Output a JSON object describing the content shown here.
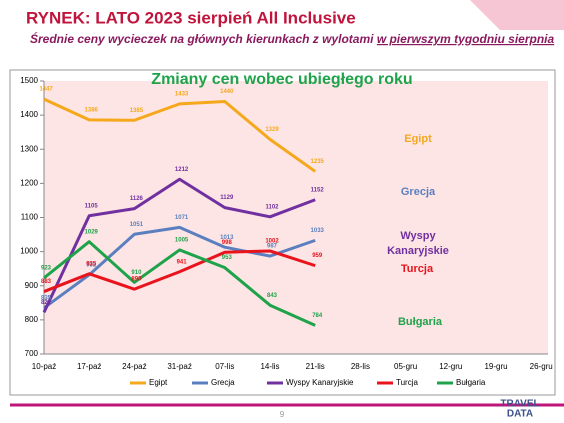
{
  "header": {
    "title": "RYNEK: LATO 2023 sierpień All Inclusive",
    "subtitle": "Średnie ceny wycieczek na głównych kierunkach z wylotami",
    "subtitle_underlined": "w pierwszym tygodniu sierpnia"
  },
  "page_number": "9",
  "logo": {
    "line1": "TRAVEL",
    "line2": "DATA"
  },
  "chart_data": {
    "type": "line",
    "title": "Zmiany cen wobec ubiegłego roku",
    "categories": [
      "10-paź",
      "17-paź",
      "24-paź",
      "31-paź",
      "07-lis",
      "14-lis",
      "21-lis",
      "28-lis",
      "05-gru",
      "12-gru",
      "19-gru",
      "26-gru"
    ],
    "series": [
      {
        "name": "Egipt",
        "color": "#f5a81c",
        "values": [
          1447,
          1386,
          1385,
          1433,
          1440,
          1329,
          1235,
          null,
          null,
          null,
          null,
          null
        ]
      },
      {
        "name": "Grecja",
        "color": "#5b7fbe",
        "values": [
          835,
          932,
          1051,
          1071,
          1013,
          987,
          1033,
          null,
          null,
          null,
          null,
          null
        ]
      },
      {
        "name": "Wyspy Kanaryjskie",
        "color": "#7030a0",
        "values": [
          822,
          1105,
          1126,
          1212,
          1129,
          1102,
          1152,
          null,
          null,
          null,
          null,
          null
        ]
      },
      {
        "name": "Turcja",
        "color": "#e8131b",
        "values": [
          883,
          935,
          890,
          941,
          998,
          1002,
          959,
          null,
          null,
          null,
          null,
          null
        ]
      },
      {
        "name": "Bułgaria",
        "color": "#1fa34a",
        "values": [
          923,
          1029,
          910,
          1005,
          953,
          843,
          784,
          null,
          null,
          null,
          null,
          null
        ]
      }
    ],
    "ylim": [
      700,
      1500
    ],
    "yticks": [
      700,
      800,
      900,
      1000,
      1100,
      1200,
      1300,
      1400,
      1500
    ],
    "grid": false,
    "legend": "bottom",
    "data_labels": true
  }
}
